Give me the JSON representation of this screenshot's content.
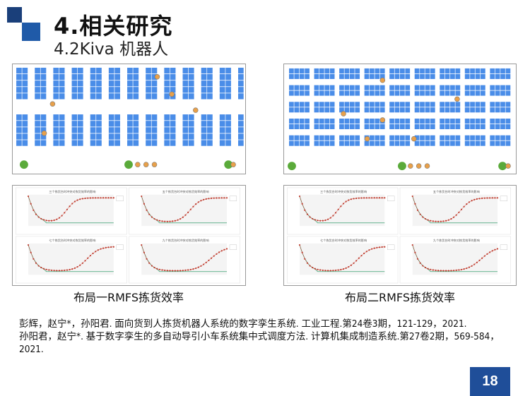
{
  "slide": {
    "title": "4.相关研究",
    "subtitle": "4.2Kiva 机器人",
    "colors": {
      "accent_dark": "#1a3f7a",
      "accent": "#1f5aa8",
      "rack": "#4a8de8",
      "robot": "#e8a04a",
      "station": "#5aaa3a",
      "curve_red": "#c0392b",
      "curve_green": "#3aa070"
    },
    "layout_images": [
      {
        "name": "布局一"
      },
      {
        "name": "布局二"
      }
    ],
    "chart_groups": [
      {
        "caption": "布局一RMFS拣货效率",
        "chart_titles": [
          "三个拣货台时冲突对拣货效率的影响",
          "五个拣货台时冲突对拣货效率的影响",
          "七个拣货台时冲突对拣货效率的影响",
          "九个拣货台时冲突对拣货效率的影响"
        ]
      },
      {
        "caption": "布局二RMFS拣货效率",
        "chart_titles": [
          "三个拣货台时冲突对拣货效率的影响",
          "五个拣货台时冲突对拣货效率的影响",
          "七个拣货台时冲突对拣货效率的影响",
          "九个拣货台时冲突对拣货效率的影响"
        ]
      }
    ],
    "references": [
      "彭辉，赵宁*，孙阳君. 面向货到人拣货机器人系统的数字孪生系统. 工业工程.第24卷3期，121-129，2021.",
      "孙阳君，赵宁*. 基于数字孪生的多自动导引小车系统集中式调度方法. 计算机集成制造系统.第27卷2期，569-584，2021."
    ],
    "page_number": "18"
  }
}
